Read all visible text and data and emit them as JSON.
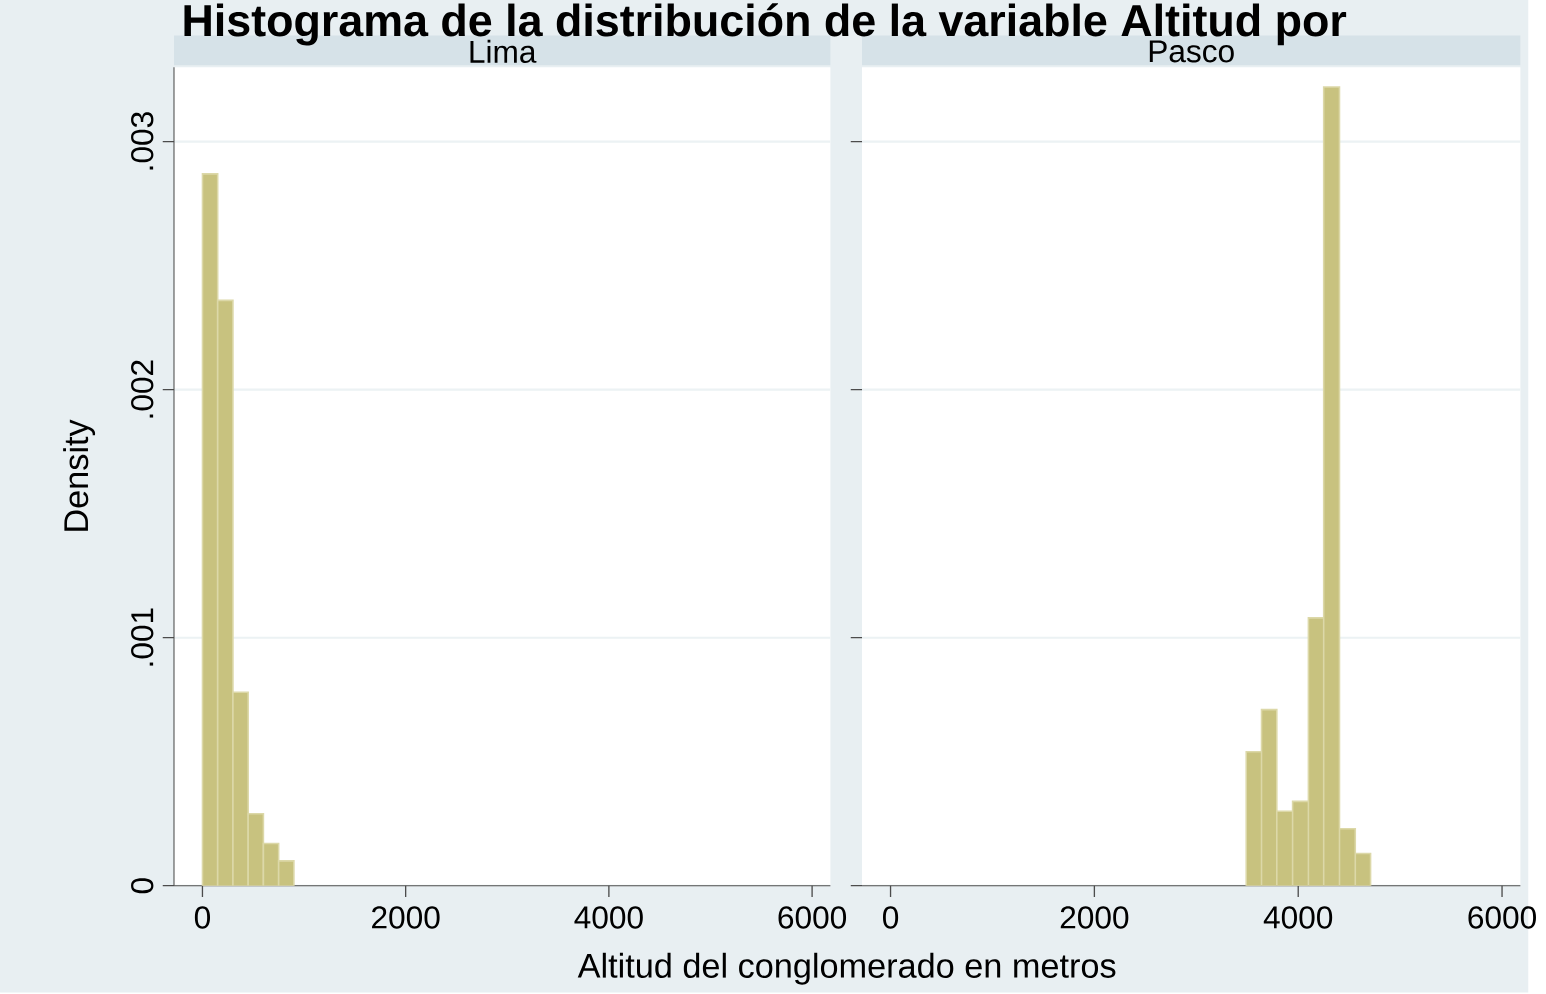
{
  "chart_data": [
    {
      "type": "histogram",
      "title": "Lima",
      "annotations": [
        "Histograma de la distribución de la variable Altitud por"
      ],
      "xlabel": "Altitud del conglomerado en metros",
      "ylabel": "Density",
      "color": "#c8c27f",
      "grid": "y",
      "bins": [
        0,
        150,
        300,
        450,
        600,
        750,
        900
      ],
      "values": [
        0.00287,
        0.00236,
        0.00078,
        0.00029,
        0.00017,
        0.0001
      ],
      "xlim": [
        -280,
        6180
      ],
      "ylim": [
        0,
        0.0033
      ],
      "xticks": [
        0,
        2000,
        4000,
        6000
      ],
      "yticks": [
        0,
        {
          "value": 0.001,
          "label": ".001"
        },
        {
          "value": 0.002,
          "label": ".002"
        },
        {
          "value": 0.003,
          "label": ".003"
        }
      ]
    },
    {
      "type": "histogram",
      "title": "Pasco",
      "color": "#c8c27f",
      "grid": "y",
      "tick_labels": "x",
      "bins": [
        3490,
        3640,
        3790,
        3945,
        4100,
        4250,
        4405,
        4560,
        4710
      ],
      "values": [
        0.00054,
        0.00071,
        0.0003,
        0.00034,
        0.00108,
        0.00322,
        0.00023,
        0.00013
      ],
      "xlim": [
        -280,
        6180
      ],
      "ylim": [
        0,
        0.0033
      ],
      "xticks": [
        0,
        2000,
        4000,
        6000
      ],
      "yticks": [
        {
          "value": 0,
          "label": null
        },
        {
          "value": 0.001,
          "label": null
        },
        {
          "value": 0.002,
          "label": null
        },
        {
          "value": 0.003,
          "label": null
        }
      ]
    }
  ]
}
